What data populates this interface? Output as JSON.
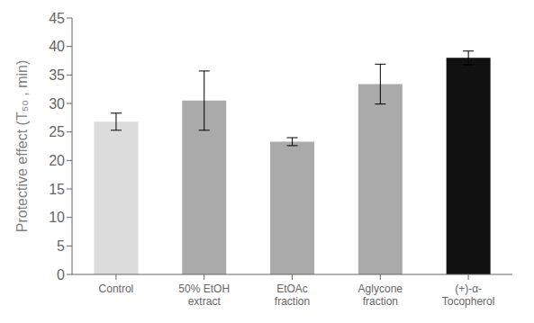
{
  "chart_data": {
    "type": "bar",
    "categories": [
      "Control",
      "50% EtOH\nextract",
      "EtOAc\nfraction",
      "Aglycone\nfraction",
      "(+)-α-\nTocopherol"
    ],
    "values": [
      26.8,
      30.5,
      23.3,
      33.4,
      38.0
    ],
    "errors": [
      1.5,
      5.2,
      0.7,
      3.5,
      1.2
    ],
    "colors": [
      "#dcdcdc",
      "#aaaaaa",
      "#aaaaaa",
      "#aaaaaa",
      "#111111"
    ],
    "ylabel": "Protective effect (T₅₀ , min)",
    "ylim": [
      0,
      45
    ],
    "yticks": [
      0,
      5,
      10,
      15,
      20,
      25,
      30,
      35,
      40,
      45
    ],
    "grid": false
  }
}
